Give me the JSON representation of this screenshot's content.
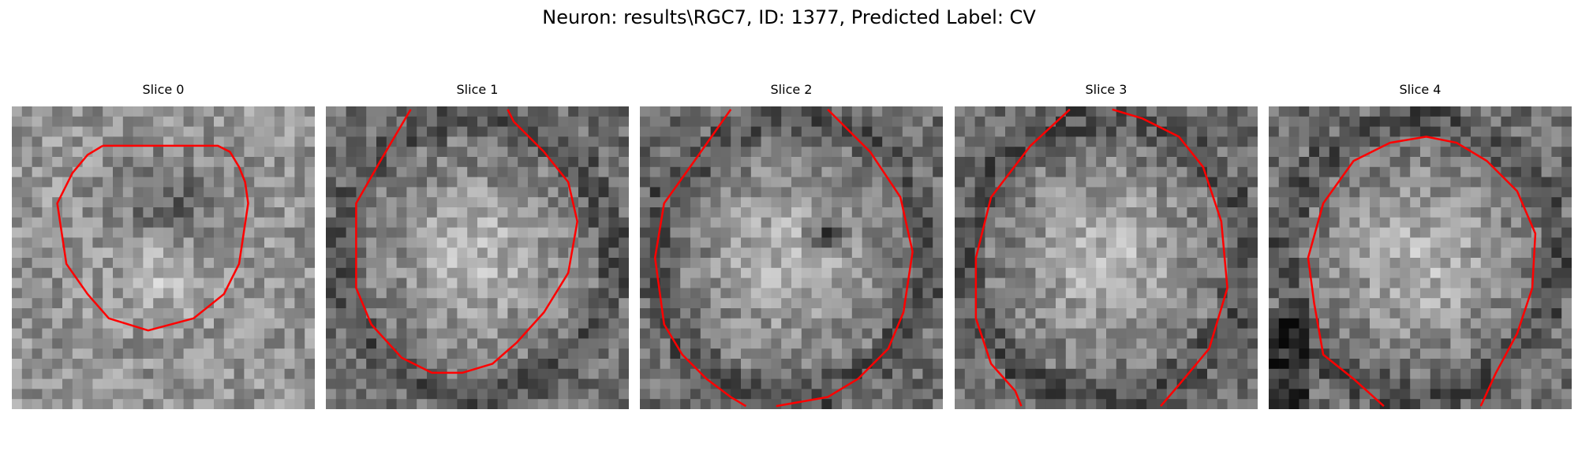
{
  "figure": {
    "title": "Neuron: results\\RGC7, ID: 1377, Predicted Label: CV",
    "contour_color": "#ff0000"
  },
  "panels": [
    {
      "title": "Slice 0",
      "pattern": "dark-rim",
      "contour": [
        [
          0.3,
          0.13
        ],
        [
          0.25,
          0.16
        ],
        [
          0.2,
          0.22
        ],
        [
          0.15,
          0.32
        ],
        [
          0.18,
          0.52
        ],
        [
          0.25,
          0.62
        ],
        [
          0.32,
          0.7
        ],
        [
          0.45,
          0.74
        ],
        [
          0.6,
          0.7
        ],
        [
          0.7,
          0.62
        ],
        [
          0.75,
          0.52
        ],
        [
          0.78,
          0.32
        ],
        [
          0.77,
          0.25
        ],
        [
          0.75,
          0.2
        ],
        [
          0.72,
          0.15
        ],
        [
          0.68,
          0.13
        ]
      ]
    },
    {
      "title": "Slice 1",
      "pattern": "bright-center",
      "contour": [
        [
          0.28,
          0.01
        ],
        [
          0.18,
          0.18
        ],
        [
          0.1,
          0.32
        ],
        [
          0.1,
          0.6
        ],
        [
          0.15,
          0.72
        ],
        [
          0.25,
          0.83
        ],
        [
          0.35,
          0.88
        ],
        [
          0.45,
          0.88
        ],
        [
          0.55,
          0.85
        ],
        [
          0.63,
          0.78
        ],
        [
          0.72,
          0.68
        ],
        [
          0.8,
          0.55
        ],
        [
          0.83,
          0.38
        ],
        [
          0.8,
          0.25
        ],
        [
          0.72,
          0.15
        ],
        [
          0.62,
          0.05
        ],
        [
          0.6,
          0.01
        ]
      ]
    },
    {
      "title": "Slice 2",
      "pattern": "bright-center-spot",
      "contour": [
        [
          0.3,
          0.01
        ],
        [
          0.18,
          0.18
        ],
        [
          0.08,
          0.32
        ],
        [
          0.05,
          0.5
        ],
        [
          0.08,
          0.72
        ],
        [
          0.14,
          0.82
        ],
        [
          0.22,
          0.9
        ],
        [
          0.3,
          0.96
        ],
        [
          0.35,
          0.99
        ]
      ]
    },
    {
      "title": "Slice 3",
      "pattern": "bright-center",
      "contour": [
        [
          0.38,
          0.01
        ],
        [
          0.25,
          0.13
        ],
        [
          0.12,
          0.3
        ],
        [
          0.07,
          0.5
        ],
        [
          0.07,
          0.7
        ],
        [
          0.12,
          0.85
        ],
        [
          0.2,
          0.94
        ],
        [
          0.22,
          0.99
        ]
      ]
    },
    {
      "title": "Slice 4",
      "pattern": "bright-center-dark-left",
      "contour": [
        [
          0.38,
          0.99
        ],
        [
          0.28,
          0.9
        ],
        [
          0.18,
          0.82
        ],
        [
          0.15,
          0.65
        ],
        [
          0.13,
          0.5
        ],
        [
          0.18,
          0.32
        ],
        [
          0.28,
          0.18
        ],
        [
          0.4,
          0.12
        ],
        [
          0.52,
          0.1
        ],
        [
          0.62,
          0.12
        ],
        [
          0.72,
          0.18
        ],
        [
          0.82,
          0.28
        ],
        [
          0.88,
          0.42
        ],
        [
          0.87,
          0.6
        ],
        [
          0.82,
          0.75
        ],
        [
          0.75,
          0.88
        ],
        [
          0.7,
          0.99
        ]
      ]
    }
  ],
  "panels_extra": {
    "slice2_right": [
      [
        0.62,
        0.01
      ],
      [
        0.76,
        0.15
      ],
      [
        0.86,
        0.3
      ],
      [
        0.9,
        0.48
      ],
      [
        0.87,
        0.68
      ],
      [
        0.82,
        0.8
      ],
      [
        0.72,
        0.9
      ],
      [
        0.62,
        0.96
      ],
      [
        0.45,
        0.99
      ]
    ],
    "slice3_right": [
      [
        0.52,
        0.01
      ],
      [
        0.62,
        0.04
      ],
      [
        0.74,
        0.1
      ],
      [
        0.82,
        0.2
      ],
      [
        0.88,
        0.38
      ],
      [
        0.9,
        0.6
      ],
      [
        0.84,
        0.8
      ],
      [
        0.74,
        0.92
      ],
      [
        0.68,
        0.99
      ]
    ]
  }
}
